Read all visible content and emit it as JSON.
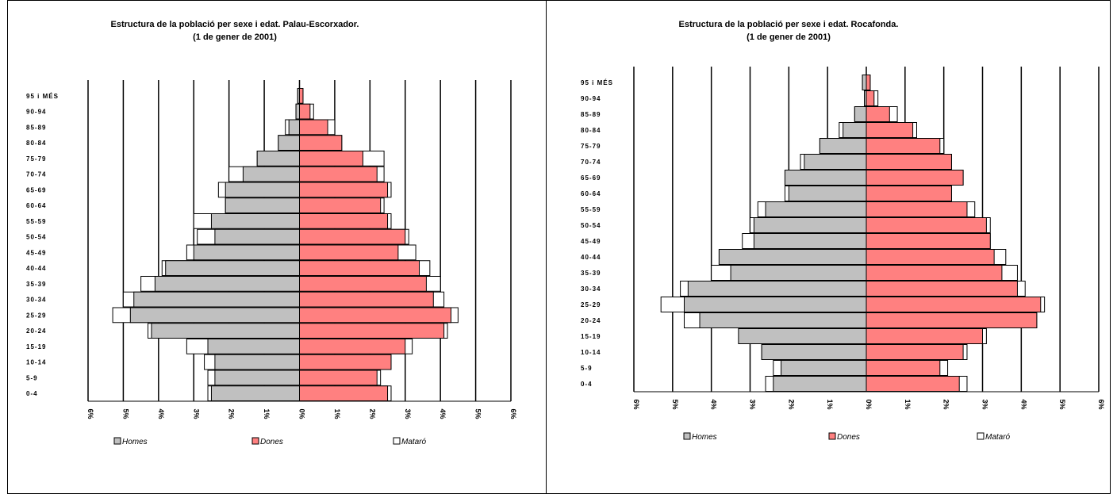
{
  "colors": {
    "men": "#c0c0c0",
    "women": "#ff8080",
    "city_outline": "#000000"
  },
  "legend_labels": {
    "men": "Homes",
    "women": "Dones",
    "city": "Mataró"
  },
  "chart_data": [
    {
      "type": "bar",
      "orientation": "horizontal-population-pyramid",
      "title": "Estructura de la població per sexe i edat. Palau-Escorxador.",
      "subtitle": "(1 de gener de 2001)",
      "categories": [
        "0-4",
        "5-9",
        "10-14",
        "15-19",
        "20-24",
        "25-29",
        "30-34",
        "35-39",
        "40-44",
        "45-49",
        "50-54",
        "55-59",
        "60-64",
        "65-69",
        "70-74",
        "75-79",
        "80-84",
        "85-89",
        "90-94",
        "95 i MÉS"
      ],
      "tick_labels": [
        "6%",
        "5%",
        "4%",
        "3%",
        "2%",
        "1%",
        "0%",
        "1%",
        "2%",
        "3%",
        "4%",
        "5%",
        "6%"
      ],
      "xlim": [
        -6,
        6
      ],
      "series": [
        {
          "name": "Homes",
          "values": [
            -2.5,
            -2.4,
            -2.4,
            -2.6,
            -4.2,
            -4.8,
            -4.7,
            -4.1,
            -3.8,
            -3.0,
            -2.4,
            -2.5,
            -2.1,
            -2.1,
            -1.6,
            -1.2,
            -0.6,
            -0.3,
            -0.1,
            -0.05
          ]
        },
        {
          "name": "Dones",
          "values": [
            2.5,
            2.2,
            2.6,
            3.0,
            4.1,
            4.3,
            3.8,
            3.6,
            3.4,
            2.8,
            3.0,
            2.5,
            2.3,
            2.5,
            2.2,
            1.8,
            1.2,
            0.8,
            0.3,
            0.1
          ]
        },
        {
          "name": "Mataró",
          "values_men": [
            -2.6,
            -2.6,
            -2.7,
            -3.2,
            -4.3,
            -5.3,
            -5.0,
            -4.5,
            -3.9,
            -3.2,
            -2.9,
            -3.0,
            -2.1,
            -2.3,
            -2.0,
            -1.2,
            -0.6,
            -0.4,
            -0.1,
            -0.05
          ],
          "values_women": [
            2.6,
            2.3,
            2.6,
            3.2,
            4.2,
            4.5,
            4.1,
            4.0,
            3.7,
            3.3,
            3.1,
            2.6,
            2.4,
            2.6,
            2.4,
            2.4,
            1.2,
            1.0,
            0.4,
            0.1
          ]
        }
      ],
      "grid": true,
      "legend_position": "bottom"
    },
    {
      "type": "bar",
      "orientation": "horizontal-population-pyramid",
      "title": "Estructura de la població per sexe i edat. Rocafonda.",
      "subtitle": "(1 de gener de 2001)",
      "categories": [
        "0-4",
        "5-9",
        "10-14",
        "15-19",
        "20-24",
        "25-29",
        "30-34",
        "35-39",
        "40-44",
        "45-49",
        "50-54",
        "55-59",
        "60-64",
        "65-69",
        "70-74",
        "75-79",
        "80-84",
        "85-89",
        "90-94",
        "95 i MÉS"
      ],
      "tick_labels": [
        "6%",
        "5%",
        "4%",
        "3%",
        "2%",
        "1%",
        "0%",
        "1%",
        "2%",
        "3%",
        "4%",
        "5%",
        "6%"
      ],
      "xlim": [
        -6,
        6
      ],
      "series": [
        {
          "name": "Homes",
          "values": [
            -2.4,
            -2.2,
            -2.7,
            -3.3,
            -4.3,
            -4.7,
            -4.6,
            -3.5,
            -3.8,
            -2.9,
            -2.9,
            -2.6,
            -2.0,
            -2.1,
            -1.6,
            -1.2,
            -0.6,
            -0.3,
            -0.05,
            -0.1
          ]
        },
        {
          "name": "Dones",
          "values": [
            2.4,
            1.9,
            2.5,
            3.0,
            4.4,
            4.5,
            3.9,
            3.5,
            3.3,
            3.2,
            3.1,
            2.6,
            2.2,
            2.5,
            2.2,
            1.9,
            1.2,
            0.6,
            0.2,
            0.1
          ]
        },
        {
          "name": "Mataró",
          "values_men": [
            -2.6,
            -2.4,
            -2.7,
            -3.2,
            -4.7,
            -5.3,
            -4.8,
            -4.0,
            -3.8,
            -3.2,
            -3.0,
            -2.8,
            -2.1,
            -2.1,
            -1.7,
            -1.2,
            -0.7,
            -0.3,
            -0.05,
            -0.1
          ],
          "values_women": [
            2.6,
            2.1,
            2.6,
            3.1,
            4.4,
            4.6,
            4.1,
            3.9,
            3.6,
            3.2,
            3.2,
            2.8,
            2.2,
            2.5,
            2.2,
            2.0,
            1.3,
            0.8,
            0.3,
            0.1
          ]
        }
      ],
      "grid": true,
      "legend_position": "bottom"
    }
  ]
}
